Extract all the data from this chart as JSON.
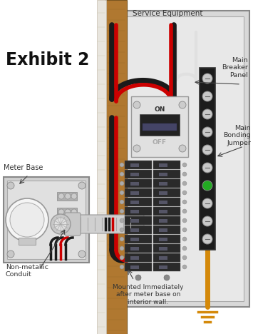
{
  "title": "Exhibit 2",
  "label_service_equipment": "Service Equipment",
  "label_meter_base": "Meter Base",
  "label_non_metallic": "Non-metallic\nConduit",
  "label_mounted": "Mounted Immediately\nafter meter base on\ninterior wall.",
  "label_main_breaker": "Main\nBreaker\nPanel",
  "label_main_bonding": "Main\nBonding\nJumper",
  "bg_color": "#ffffff",
  "wall_color": "#b07830",
  "wall_trim": "#ddd8cc",
  "panel_bg": "#d8d8d8",
  "panel_inner": "#e8e8e8",
  "wire_red": "#cc0000",
  "wire_black": "#1a1a1a",
  "wire_orange": "#d4890a",
  "nb_bg": "#1a1a1a",
  "green_dot": "#22aa22",
  "breaker_bg": "#c0c0c0",
  "cb_dark": "#222222"
}
